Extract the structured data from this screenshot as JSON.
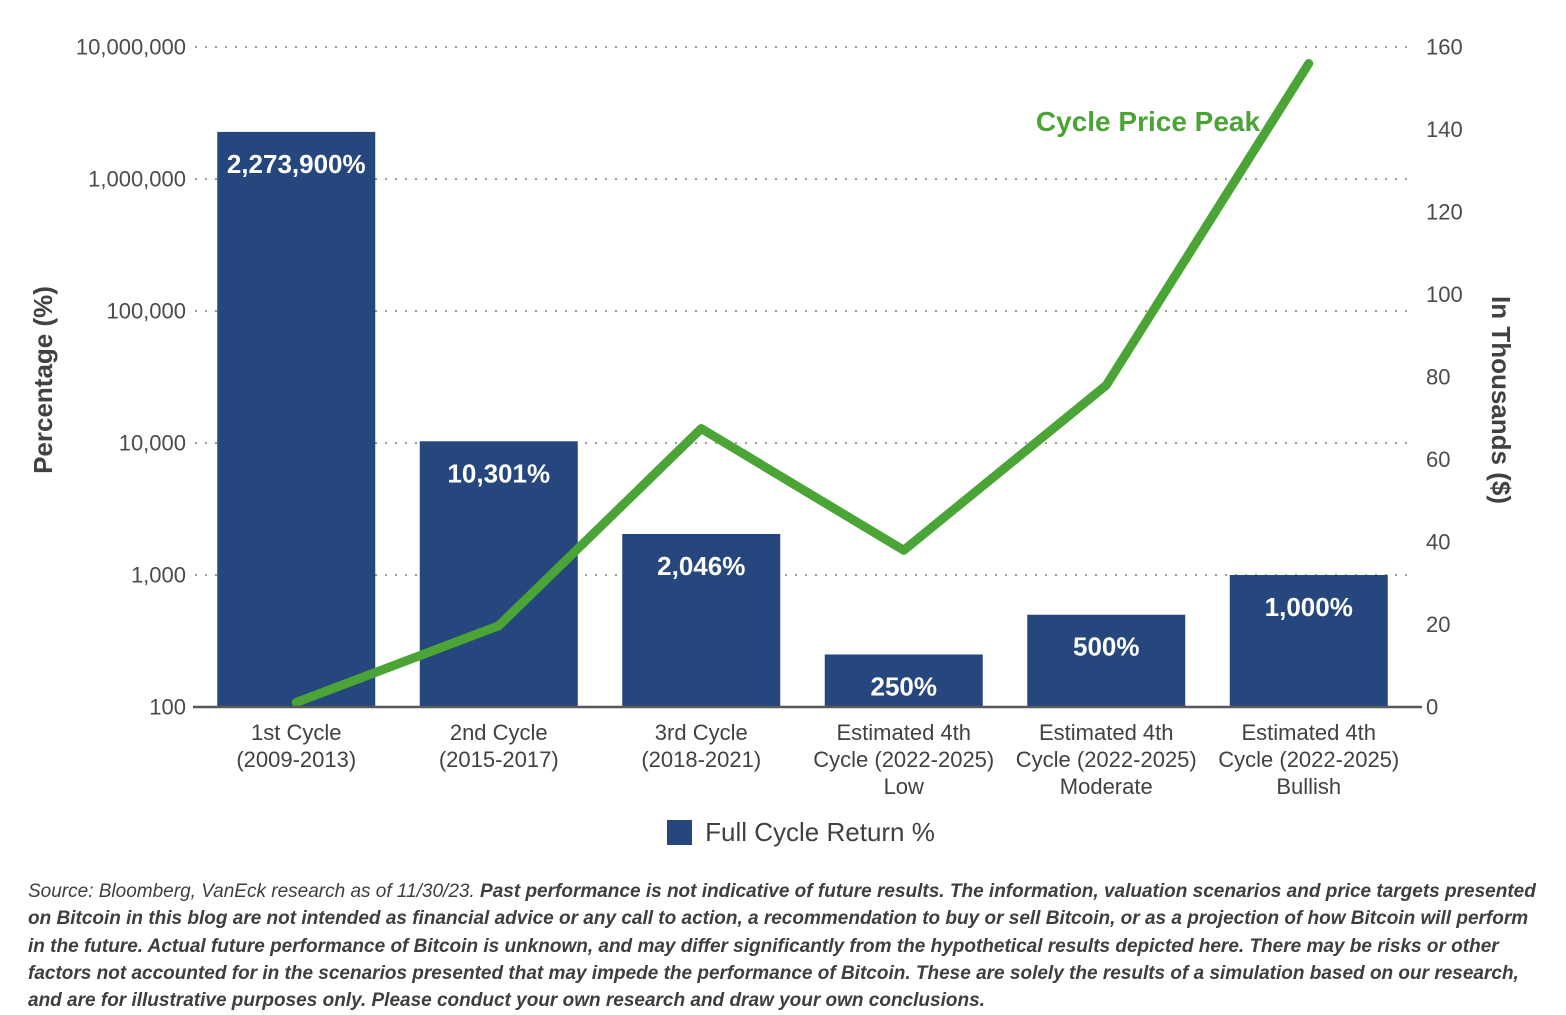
{
  "chart_data": {
    "type": "combo",
    "title": "",
    "categories": [
      [
        "1st Cycle",
        "(2009-2013)"
      ],
      [
        "2nd Cycle",
        "(2015-2017)"
      ],
      [
        "3rd Cycle",
        "(2018-2021)"
      ],
      [
        "Estimated 4th",
        "Cycle (2022-2025)",
        "Low"
      ],
      [
        "Estimated 4th",
        "Cycle (2022-2025)",
        "Moderate"
      ],
      [
        "Estimated 4th",
        "Cycle (2022-2025)",
        "Bullish"
      ]
    ],
    "series": [
      {
        "name": "Full Cycle Return %",
        "type": "bar",
        "axis": "left",
        "values": [
          2273900,
          10301,
          2046,
          250,
          500,
          1000
        ],
        "value_labels": [
          "2,273,900%",
          "10,301%",
          "2,046%",
          "250%",
          "500%",
          "1,000%"
        ],
        "color": "#26477E"
      },
      {
        "name": "Cycle Price Peak",
        "type": "line",
        "axis": "right",
        "values": [
          1.1,
          19.7,
          67.5,
          38,
          78,
          156
        ],
        "color": "#4BA436"
      }
    ],
    "left_axis": {
      "label": "Percentage (%)",
      "scale": "log",
      "min": 100,
      "max": 10000000,
      "tick_labels": [
        "10,000,000",
        "1,000,000",
        "100,000",
        "10,000",
        "1,000",
        "100"
      ],
      "tick_values": [
        10000000,
        1000000,
        100000,
        10000,
        1000,
        100
      ]
    },
    "right_axis": {
      "label": "In Thousands ($)",
      "scale": "linear",
      "min": 0,
      "max": 160,
      "tick_step": 20,
      "tick_labels": [
        "160",
        "140",
        "120",
        "100",
        "80",
        "60",
        "40",
        "20",
        "0"
      ]
    },
    "annotation": "Cycle Price Peak",
    "legend_position": "bottom",
    "grid": "horizontal-dotted",
    "style": {
      "axis_line_color": "#58595B",
      "grid_color": "#9b9b9b",
      "tick_text_color": "#4b4b4d",
      "axis_title_color": "#414042",
      "bar_label_color": "#ffffff"
    }
  },
  "footer": {
    "source": "Source: Bloomberg, VanEck research as of 11/30/23. ",
    "disclaimer": "Past performance is not indicative of future results. The information, valuation scenarios and price targets presented on Bitcoin in this blog are not intended as financial advice or any call to action, a recommendation to buy or sell Bitcoin, or as a projection of how Bitcoin will perform in the future. Actual future performance of Bitcoin is unknown, and may differ significantly from the hypothetical results depicted here. There may be risks or other factors not accounted for in the scenarios presented that may impede the performance of Bitcoin. These are solely the results of a simulation based on our research, and are for illustrative purposes only. Please conduct your own research and draw your own conclusions."
  }
}
